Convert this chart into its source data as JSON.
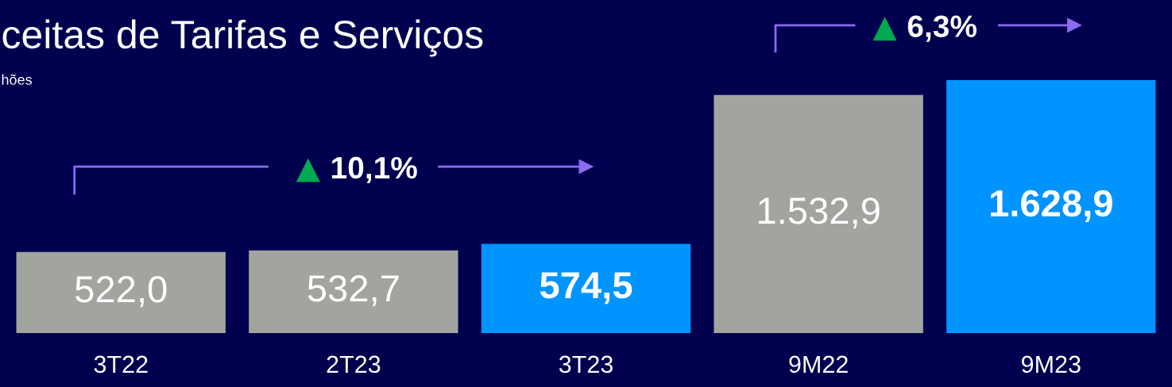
{
  "chart_data": {
    "type": "bar",
    "title": "ceitas de Tarifas e Serviços",
    "subtitle": "hões",
    "categories": [
      "3T22",
      "2T23",
      "3T23",
      "9M22",
      "9M23"
    ],
    "values": [
      522.0,
      532.7,
      574.5,
      1532.9,
      1628.9
    ],
    "colors": [
      "#a2a4a0",
      "#a2a4a0",
      "#0094ff",
      "#a2a4a0",
      "#0094ff"
    ],
    "value_labels": [
      "522,0",
      "532,7",
      "574,5",
      "1.532,9",
      "1.628,9"
    ],
    "annotations": [
      "10,1%",
      "6,3%"
    ]
  }
}
